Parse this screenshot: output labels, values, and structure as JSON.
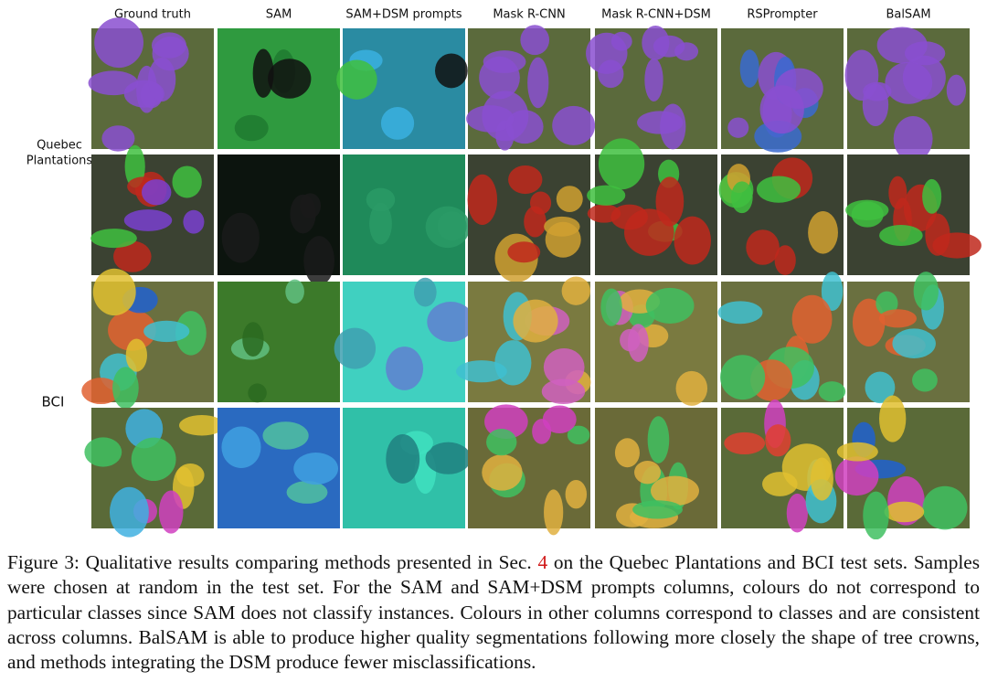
{
  "columns": [
    "Ground truth",
    "SAM",
    "SAM+DSM prompts",
    "Mask R-CNN",
    "Mask R-CNN+DSM",
    "RSPrompter",
    "BalSAM"
  ],
  "row_labels": [
    {
      "lines": [
        "Quebec",
        "Plantations"
      ]
    },
    {
      "lines": [
        "BCI"
      ]
    }
  ],
  "caption": {
    "label": "Figure 3:",
    "text_before_ref": "Qualitative results comparing methods presented in Sec.",
    "ref": "4",
    "text_after_ref": "on the Quebec Plantations and BCI test sets. Samples were chosen at random in the test set. For the SAM and SAM+DSM prompts columns, colours do not correspond to particular classes since SAM does not classify instances. Colours in other columns correspond to classes and are consistent across columns. BalSAM is able to produce higher quality segmentations following more closely the shape of tree crowns, and methods integrating the DSM produce fewer misclassifications."
  }
}
